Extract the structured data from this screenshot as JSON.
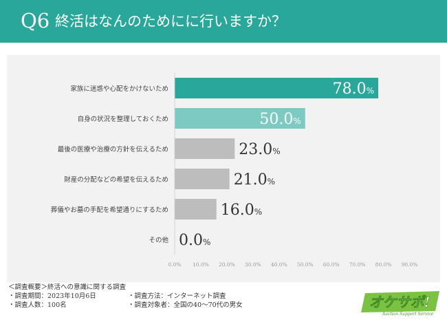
{
  "header": {
    "number": "Q6",
    "question": "終活はなんのためにに行いますか？"
  },
  "chart_data": {
    "type": "bar",
    "orientation": "horizontal",
    "categories": [
      "家族に迷惑や心配をかけないため",
      "自身の状況を整理しておくため",
      "最後の医療や治療の方針を伝えるため",
      "財産の分配などの希望を伝えるため",
      "葬儀やお墓の手配を希望通りにするため",
      "その他"
    ],
    "values": [
      78.0,
      50.0,
      23.0,
      21.0,
      16.0,
      0.0
    ],
    "value_labels": [
      "78.0",
      "50.0",
      "23.0",
      "21.0",
      "16.0",
      "0.0"
    ],
    "unit": "%",
    "xlim": [
      0,
      90
    ],
    "x_ticks": [
      "0.0%",
      "10.0%",
      "20.0%",
      "30.0%",
      "40.0%",
      "50.0%",
      "60.0%",
      "70.0%",
      "80.0%",
      "90.0%"
    ],
    "bar_colors": [
      "#2aa79b",
      "#7dcac2",
      "#bdbdbd",
      "#bdbdbd",
      "#bdbdbd",
      "#bdbdbd"
    ],
    "grid": false
  },
  "footer": {
    "title": "＜調査概要＞終活への意識に関する調査",
    "period": "・調査期間：2023年10月6日",
    "count": "・調査人数：100名",
    "method": "・調査方法：インターネット調査",
    "target": "・調査対象者：全国の40～70代の男女"
  },
  "logo": {
    "main": "オケサポ!",
    "sub": "Auction Support Service"
  }
}
